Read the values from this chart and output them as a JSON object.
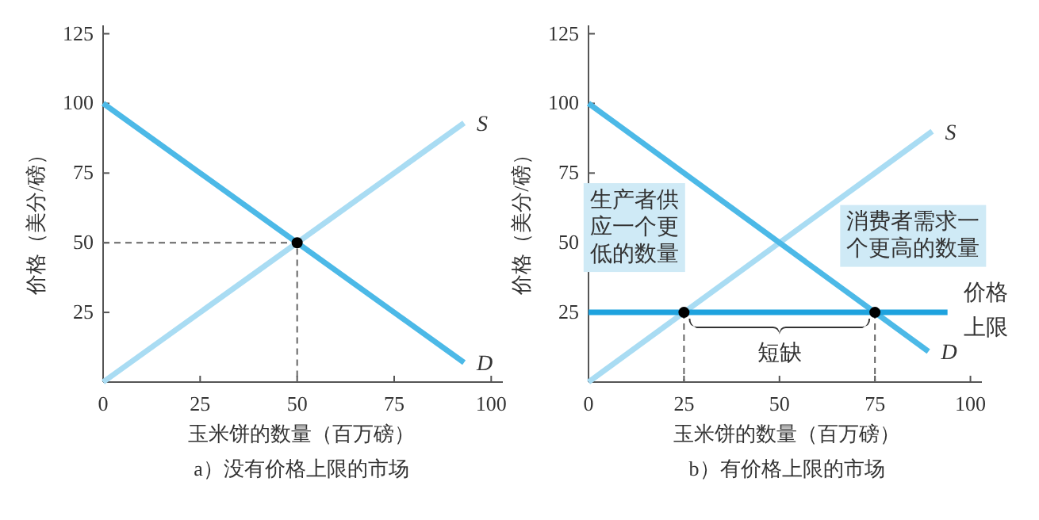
{
  "chart_data": [
    {
      "type": "line",
      "title": "a）没有价格上限的市场",
      "xlabel": "玉米饼的数量（百万磅）",
      "ylabel": "价格（美分/磅）",
      "xlim": [
        0,
        103
      ],
      "ylim": [
        0,
        128
      ],
      "xticks": [
        0,
        25,
        50,
        75,
        100
      ],
      "yticks": [
        25,
        50,
        75,
        100,
        125
      ],
      "grid": false,
      "series": [
        {
          "name": "S",
          "color": "#a9dcf3",
          "x": [
            0,
            93
          ],
          "values": [
            0,
            93
          ]
        },
        {
          "name": "D",
          "color": "#4cb9e7",
          "x": [
            0,
            93
          ],
          "values": [
            100,
            7
          ]
        },
        {
          "type": "line",
          "line_style": "dashed",
          "color": "#666666",
          "x": [
            0,
            50,
            50
          ],
          "values": [
            50,
            50,
            0
          ]
        },
        {
          "type": "scatter",
          "color": "#000000",
          "x": [
            50
          ],
          "values": [
            50
          ]
        }
      ]
    },
    {
      "type": "line",
      "title": "b）有价格上限的市场",
      "xlabel": "玉米饼的数量（百万磅）",
      "ylabel": "价格（美分/磅）",
      "xlim": [
        0,
        103
      ],
      "ylim": [
        0,
        128
      ],
      "xticks": [
        0,
        25,
        50,
        75,
        100
      ],
      "yticks": [
        25,
        50,
        75,
        100,
        125
      ],
      "grid": false,
      "series": [
        {
          "name": "S",
          "color": "#a9dcf3",
          "x": [
            0,
            90
          ],
          "values": [
            0,
            90
          ]
        },
        {
          "name": "D",
          "color": "#4cb9e7",
          "x": [
            0,
            89
          ],
          "values": [
            100,
            11
          ]
        },
        {
          "name": "价格上限",
          "color": "#1ea2de",
          "x": [
            0,
            94
          ],
          "values": [
            25,
            25
          ]
        },
        {
          "type": "line",
          "line_style": "dashed",
          "color": "#666666",
          "x": [
            25,
            25
          ],
          "values": [
            25,
            0
          ]
        },
        {
          "type": "line",
          "line_style": "dashed",
          "color": "#666666",
          "x": [
            75,
            75
          ],
          "values": [
            25,
            0
          ]
        },
        {
          "type": "scatter",
          "color": "#000000",
          "x": [
            25,
            75
          ],
          "values": [
            25,
            25
          ]
        }
      ],
      "annotations": [
        "生产者供应一个更低的数量",
        "消费者需求一个更高的数量",
        {
          "text": "短缺",
          "x": 50,
          "y": 25
        }
      ]
    }
  ]
}
